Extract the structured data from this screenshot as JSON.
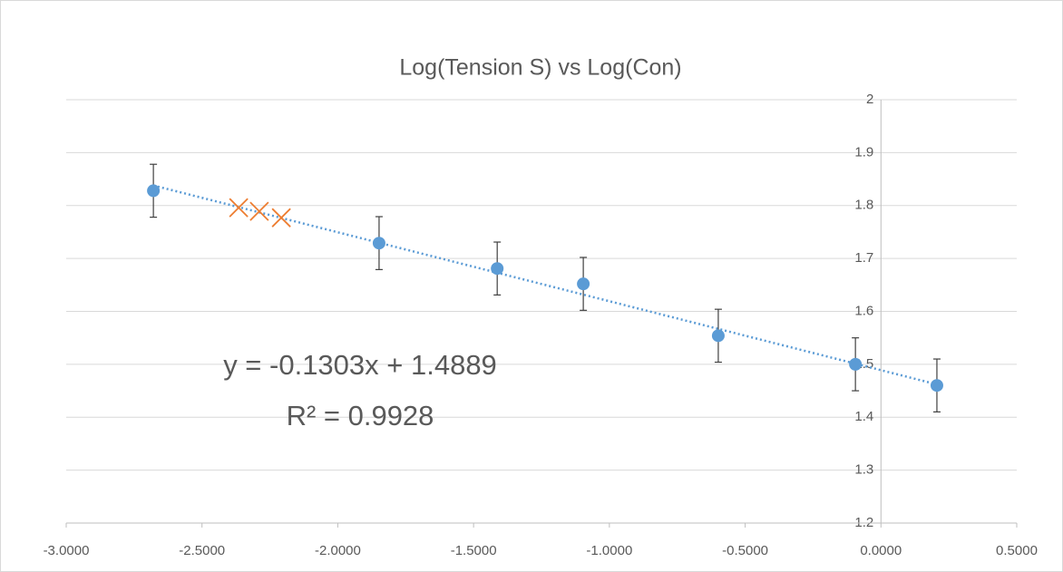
{
  "chart_data": {
    "type": "scatter",
    "title": "Log(Tension S) vs Log(Con)",
    "series": [
      {
        "color": "#5b9bd5",
        "marker": "circle",
        "x": [
          -2.679,
          -1.848,
          -1.413,
          -1.096,
          -0.599,
          -0.094,
          0.206
        ],
        "values": [
          1.828,
          1.729,
          1.681,
          1.652,
          1.554,
          1.5,
          1.46
        ],
        "errors": [
          0.05,
          0.05,
          0.05,
          0.05,
          0.05,
          0.05,
          0.05
        ]
      },
      {
        "color": "#ed7d31",
        "marker": "x",
        "x": [
          -2.365,
          -2.289,
          -2.208
        ],
        "values": [
          1.796,
          1.789,
          1.777
        ]
      }
    ],
    "trendline": {
      "slope": -0.1303,
      "intercept": 1.4889,
      "color": "#5b9bd5",
      "label": "y = -0.1303x + 1.4889",
      "r2_label": "R² = 0.9928"
    },
    "xlim": [
      -3,
      0.5
    ],
    "xticks": [
      {
        "value": -3,
        "label": "-3.0000"
      },
      {
        "value": -2.5,
        "label": "-2.5000"
      },
      {
        "value": -2,
        "label": "-2.0000"
      },
      {
        "value": -1.5,
        "label": "-1.5000"
      },
      {
        "value": -1,
        "label": "-1.0000"
      },
      {
        "value": -0.5,
        "label": "-0.5000"
      },
      {
        "value": 0,
        "label": "0.0000"
      },
      {
        "value": 0.5,
        "label": "0.5000"
      }
    ],
    "ylim": [
      1.2,
      2
    ],
    "yticks": [
      1.2,
      1.3,
      1.4,
      1.5,
      1.6,
      1.7,
      1.8,
      1.9,
      2
    ],
    "grid": true
  }
}
